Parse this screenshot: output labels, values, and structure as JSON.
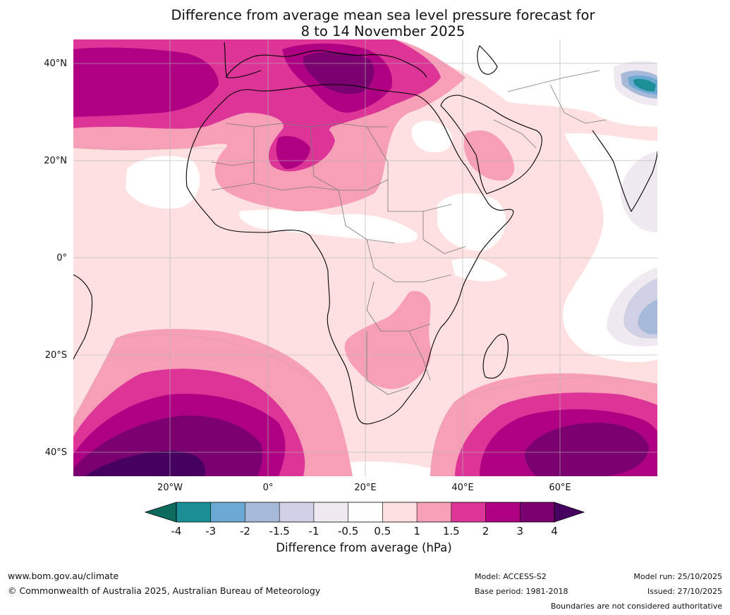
{
  "title": {
    "line1": "Difference from average mean sea level pressure forecast for",
    "line2": "8 to 14 November 2025"
  },
  "map": {
    "lat_labels": [
      "40°N",
      "20°N",
      "0°",
      "20°S",
      "40°S"
    ],
    "lat_values": [
      40,
      20,
      0,
      -20,
      -40
    ],
    "lon_labels": [
      "20°W",
      "0°",
      "20°E",
      "40°E",
      "60°E"
    ],
    "lon_values": [
      -20,
      0,
      20,
      40,
      60
    ],
    "extent": {
      "lon_min": -40,
      "lon_max": 80,
      "lat_min": -45,
      "lat_max": 45
    }
  },
  "colorbar": {
    "ticks": [
      "-4",
      "-3",
      "-2",
      "-1.5",
      "-1",
      "-0.5",
      "0.5",
      "1",
      "1.5",
      "2",
      "3",
      "4"
    ],
    "levels": [
      -4,
      -3,
      -2,
      -1.5,
      -1,
      -0.5,
      0.5,
      1,
      1.5,
      2,
      3,
      4
    ],
    "colors": [
      "#1b8f96",
      "#6aaad2",
      "#a7b9d8",
      "#cfd0e4",
      "#efe9f1",
      "#ffffff",
      "#fde0df",
      "#f89fb8",
      "#dc3597",
      "#ae0082",
      "#7a006f"
    ],
    "under_color": "#0c6b5d",
    "over_color": "#450060",
    "label": "Difference from average (hPa)"
  },
  "footer": {
    "url": "www.bom.gov.au/climate",
    "copyright": "© Commonwealth of Australia 2025, Australian Bureau of Meteorology",
    "model": "Model: ACCESS-S2",
    "base_period": "Base period: 1981-2018",
    "model_run": "Model run: 25/10/2025",
    "issued": "Issued: 27/10/2025",
    "disclaimer": "Boundaries are not considered authoritative"
  }
}
